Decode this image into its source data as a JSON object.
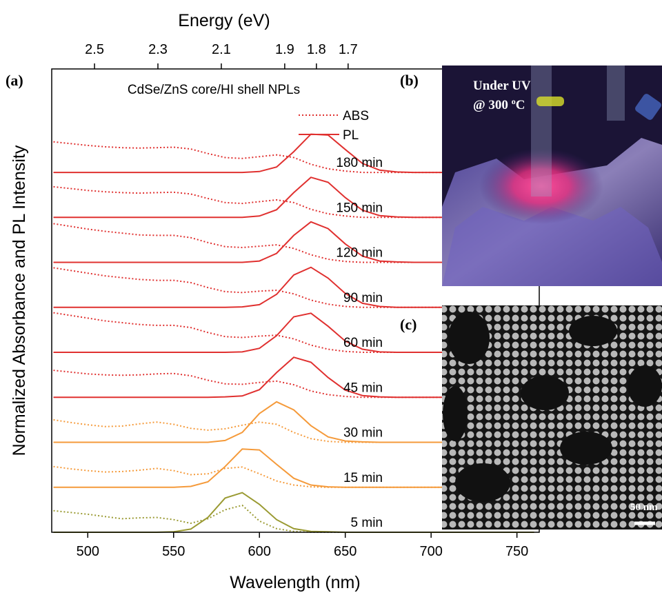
{
  "chart_data": {
    "type": "line",
    "panel_labels": [
      "(a)",
      "(b)",
      "(c)"
    ],
    "title": "CdSe/ZnS core/HI shell NPLs",
    "xlabel": "Wavelength (nm)",
    "ylabel": "Normalized Absorbance and PL Intensity",
    "x2label": "Energy (eV)",
    "xlim": [
      479,
      763
    ],
    "xticks": [
      500,
      550,
      600,
      650,
      700,
      750
    ],
    "x2lim": [
      2.635,
      1.097
    ],
    "x2ticks": [
      2.5,
      2.3,
      2.1,
      1.9,
      1.8,
      1.7
    ],
    "ylim": [
      0,
      10.3
    ],
    "legend": [
      {
        "name": "ABS",
        "style": "dotted",
        "color": "#e0302f"
      },
      {
        "name": "PL",
        "style": "solid",
        "color": "#e0302f"
      }
    ],
    "x": [
      480,
      490,
      500,
      510,
      520,
      530,
      540,
      550,
      560,
      570,
      580,
      590,
      600,
      610,
      620,
      630,
      640,
      650,
      660,
      670,
      680,
      690,
      700,
      710,
      720,
      730,
      740,
      750,
      760
    ],
    "traces": [
      {
        "label": "5 min",
        "color": "#9a9a32",
        "abs": [
          0.48,
          0.44,
          0.4,
          0.35,
          0.3,
          0.32,
          0.33,
          0.28,
          0.2,
          0.3,
          0.5,
          0.6,
          0.25,
          0.08,
          0.02,
          0,
          0,
          0,
          0,
          0,
          0,
          0,
          0,
          0,
          0,
          0,
          0,
          0,
          0
        ],
        "pl": [
          0,
          0,
          0,
          0,
          0,
          0,
          0,
          0.01,
          0.07,
          0.33,
          0.76,
          0.88,
          0.62,
          0.28,
          0.08,
          0.02,
          0.01,
          0,
          0,
          0,
          0,
          0,
          0,
          0,
          0,
          0,
          0,
          0,
          0
        ]
      },
      {
        "label": "15 min",
        "color": "#f59a3a",
        "abs": [
          1.46,
          1.41,
          1.37,
          1.34,
          1.35,
          1.38,
          1.42,
          1.37,
          1.28,
          1.3,
          1.42,
          1.45,
          1.3,
          1.14,
          1.05,
          1.01,
          1,
          1,
          1,
          1,
          1,
          1,
          1,
          1,
          1,
          1,
          1,
          1,
          1
        ],
        "pl": [
          1,
          1,
          1,
          1,
          1,
          1,
          1,
          1,
          1.02,
          1.12,
          1.46,
          1.85,
          1.83,
          1.51,
          1.2,
          1.05,
          1.01,
          1,
          1,
          1,
          1,
          1,
          1,
          1,
          1,
          1,
          1,
          1,
          1
        ]
      },
      {
        "label": "30 min",
        "color": "#f59a3a",
        "abs": [
          2.5,
          2.44,
          2.39,
          2.35,
          2.36,
          2.41,
          2.45,
          2.4,
          2.31,
          2.27,
          2.3,
          2.38,
          2.45,
          2.4,
          2.22,
          2.08,
          2.02,
          2,
          2,
          2,
          2,
          2,
          2,
          2,
          2,
          2,
          2,
          2,
          2
        ],
        "pl": [
          2,
          2,
          2,
          2,
          2,
          2,
          2,
          2,
          2,
          2,
          2.04,
          2.22,
          2.64,
          2.9,
          2.72,
          2.37,
          2.12,
          2.03,
          2.01,
          2,
          2,
          2,
          2,
          2,
          2,
          2,
          2,
          2,
          2
        ]
      },
      {
        "label": "45 min",
        "color": "#e0302f",
        "abs": [
          3.6,
          3.56,
          3.52,
          3.5,
          3.49,
          3.5,
          3.52,
          3.53,
          3.48,
          3.38,
          3.3,
          3.29,
          3.33,
          3.36,
          3.28,
          3.14,
          3.06,
          3.02,
          3,
          3,
          3,
          3,
          3,
          3,
          3,
          3,
          3,
          3,
          3
        ],
        "pl": [
          3,
          3,
          3,
          3,
          3,
          3,
          3,
          3,
          3,
          3,
          3.01,
          3.03,
          3.17,
          3.55,
          3.89,
          3.78,
          3.44,
          3.16,
          3.04,
          3.01,
          3,
          3,
          3,
          3,
          3,
          3,
          3,
          3,
          3
        ]
      },
      {
        "label": "60 min",
        "color": "#e0302f",
        "abs": [
          4.88,
          4.82,
          4.76,
          4.7,
          4.66,
          4.62,
          4.6,
          4.6,
          4.55,
          4.44,
          4.35,
          4.33,
          4.36,
          4.38,
          4.3,
          4.16,
          4.07,
          4.02,
          4,
          4,
          4,
          4,
          4,
          4,
          4,
          4,
          4,
          4,
          4
        ],
        "pl": [
          4,
          4,
          4,
          4,
          4,
          4,
          4,
          4,
          4,
          4,
          4,
          4.01,
          4.09,
          4.37,
          4.79,
          4.87,
          4.58,
          4.25,
          4.07,
          4.01,
          4,
          4,
          4,
          4,
          4,
          4,
          4,
          4,
          4
        ]
      },
      {
        "label": "90 min",
        "color": "#e0302f",
        "abs": [
          5.88,
          5.82,
          5.76,
          5.7,
          5.66,
          5.62,
          5.6,
          5.6,
          5.55,
          5.44,
          5.35,
          5.33,
          5.36,
          5.38,
          5.3,
          5.16,
          5.07,
          5.02,
          5,
          5,
          5,
          5,
          5,
          5,
          5,
          5,
          5,
          5,
          5
        ],
        "pl": [
          5,
          5,
          5,
          5,
          5,
          5,
          5,
          5,
          5,
          5,
          5,
          5.01,
          5.06,
          5.29,
          5.72,
          5.89,
          5.65,
          5.31,
          5.09,
          5.02,
          5,
          5,
          5,
          5,
          5,
          5,
          5,
          5,
          5
        ]
      },
      {
        "label": "120 min",
        "color": "#e0302f",
        "abs": [
          6.86,
          6.8,
          6.74,
          6.69,
          6.65,
          6.61,
          6.6,
          6.6,
          6.55,
          6.44,
          6.35,
          6.33,
          6.36,
          6.39,
          6.31,
          6.17,
          6.07,
          6.02,
          6,
          6,
          6,
          6,
          6,
          6,
          6,
          6,
          6,
          6,
          6
        ],
        "pl": [
          6,
          6,
          6,
          6,
          6,
          6,
          6,
          6,
          6,
          6,
          6,
          6,
          6.03,
          6.2,
          6.6,
          6.9,
          6.75,
          6.41,
          6.14,
          6.03,
          6.01,
          6,
          6,
          6,
          6,
          6,
          6,
          6,
          6
        ]
      },
      {
        "label": "150 min",
        "color": "#e0302f",
        "abs": [
          7.68,
          7.64,
          7.6,
          7.57,
          7.55,
          7.54,
          7.55,
          7.56,
          7.52,
          7.42,
          7.33,
          7.31,
          7.35,
          7.39,
          7.33,
          7.18,
          7.08,
          7.03,
          7,
          7,
          7,
          7,
          7,
          7,
          7,
          7,
          7,
          7,
          7
        ],
        "pl": [
          7,
          7,
          7,
          7,
          7,
          7,
          7,
          7,
          7,
          7,
          7,
          7,
          7.03,
          7.17,
          7.55,
          7.89,
          7.78,
          7.44,
          7.16,
          7.04,
          7.01,
          7,
          7,
          7,
          7,
          7,
          7,
          7,
          7
        ]
      },
      {
        "label": "180 min",
        "color": "#e0302f",
        "abs": [
          8.68,
          8.64,
          8.6,
          8.57,
          8.55,
          8.54,
          8.55,
          8.56,
          8.52,
          8.42,
          8.33,
          8.31,
          8.35,
          8.39,
          8.33,
          8.18,
          8.08,
          8.03,
          8,
          8,
          8,
          8,
          8,
          8,
          8,
          8,
          8,
          8,
          8
        ],
        "pl": [
          8,
          8,
          8,
          8,
          8,
          8,
          8,
          8,
          8,
          8,
          8,
          8,
          8.02,
          8.12,
          8.46,
          8.85,
          8.83,
          8.51,
          8.2,
          8.05,
          8.01,
          8,
          8,
          8,
          8,
          8,
          8,
          8,
          8
        ]
      }
    ],
    "photo_text": {
      "line1": "Under UV",
      "line2": [
        "@ 300 ",
        "o",
        "C"
      ]
    },
    "scale_bar": "50 nm"
  }
}
